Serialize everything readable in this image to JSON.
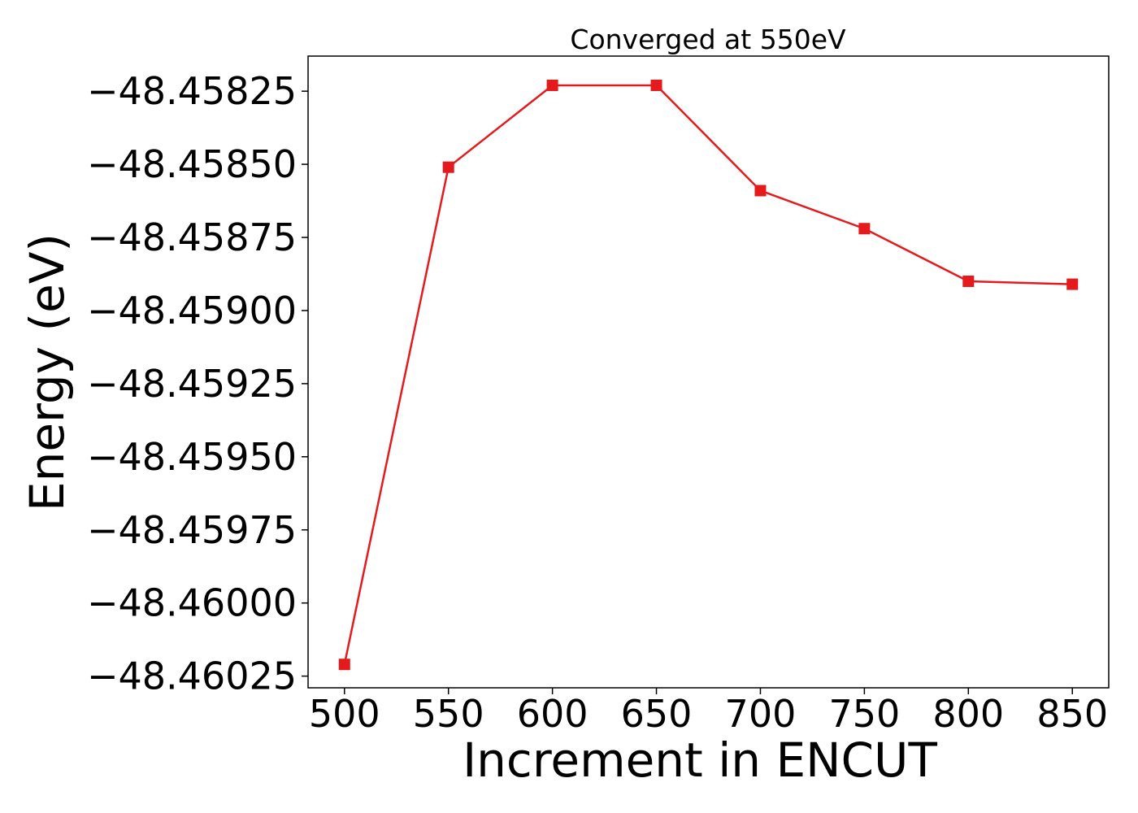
{
  "chart_data": {
    "type": "line",
    "title": "Converged at 550eV",
    "xlabel": "Increment in ENCUT",
    "ylabel": "Energy (eV)",
    "x": [
      500,
      550,
      600,
      650,
      700,
      750,
      800,
      850
    ],
    "series": [
      {
        "values": [
          -48.46021,
          -48.45851,
          -48.45823,
          -48.45823,
          -48.45859,
          -48.45872,
          -48.4589,
          -48.45891
        ],
        "color": "#e41a1c",
        "marker": "square"
      }
    ],
    "xlim": [
      482.5,
      867.5
    ],
    "ylim": [
      -48.46029,
      -48.45813
    ],
    "xticks": [
      500,
      550,
      600,
      650,
      700,
      750,
      800,
      850
    ],
    "xtick_labels": [
      "500",
      "550",
      "600",
      "650",
      "700",
      "750",
      "800",
      "850"
    ],
    "yticks": [
      -48.45825,
      -48.4585,
      -48.45875,
      -48.459,
      -48.45925,
      -48.4595,
      -48.45975,
      -48.46,
      -48.46025
    ],
    "ytick_labels": [
      "−48.45825",
      "−48.45850",
      "−48.45875",
      "−48.45900",
      "−48.45925",
      "−48.45950",
      "−48.45975",
      "−48.46000",
      "−48.46025"
    ],
    "grid": false,
    "legend": "none"
  }
}
